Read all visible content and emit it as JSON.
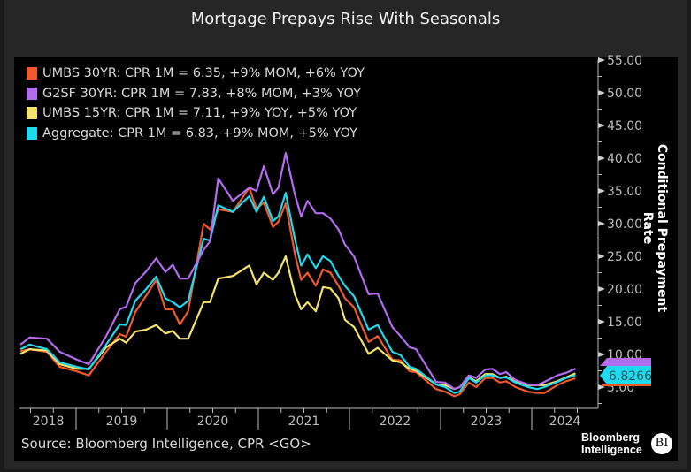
{
  "title": "Mortgage Prepays Rise With Seasonals",
  "source": "Source: Bloomberg Intelligence, CPR <GO>",
  "brand": {
    "line1": "Bloomberg",
    "line2": "Intelligence",
    "badge": "BI"
  },
  "chart_data": {
    "type": "line",
    "title": "Mortgage Prepays Rise With Seasonals",
    "xlabel": "",
    "ylabel": "Conditional Prepayment Rate",
    "ylim": [
      0,
      55
    ],
    "yticks": [
      "5.00",
      "10.00",
      "15.00",
      "20.00",
      "25.00",
      "30.00",
      "35.00",
      "40.00",
      "45.00",
      "50.00",
      "55.00"
    ],
    "xlim": [
      2018.39,
      2024.75
    ],
    "xticks": [
      "2018",
      "2019",
      "2020",
      "2021",
      "2022",
      "2023",
      "2024"
    ],
    "last_value_tag": "6.8266",
    "legend_position": "top-left",
    "x": [
      2018.39,
      2018.49,
      2018.68,
      2018.82,
      2019.01,
      2019.14,
      2019.33,
      2019.48,
      2019.55,
      2019.65,
      2019.77,
      2019.88,
      2019.98,
      2020.06,
      2020.14,
      2020.23,
      2020.4,
      2020.47,
      2020.56,
      2020.72,
      2020.9,
      2020.98,
      2021.06,
      2021.16,
      2021.22,
      2021.3,
      2021.4,
      2021.47,
      2021.54,
      2021.63,
      2021.71,
      2021.79,
      2021.88,
      2021.95,
      2022.05,
      2022.21,
      2022.31,
      2022.47,
      2022.56,
      2022.66,
      2022.73,
      2022.95,
      2023.05,
      2023.15,
      2023.21,
      2023.31,
      2023.39,
      2023.49,
      2023.57,
      2023.65,
      2023.72,
      2023.82,
      2023.96,
      2024.06,
      2024.14,
      2024.28,
      2024.38,
      2024.48
    ],
    "series": [
      {
        "name": "UMBS 30YR: CPR 1M = 6.35, +9% MOM, +6% YOY",
        "color": "#f0592b",
        "values": [
          10.5,
          10.8,
          10.4,
          8.1,
          7.4,
          6.8,
          10.4,
          13.1,
          12.7,
          16.5,
          19.0,
          21.4,
          16.9,
          16.9,
          14.6,
          16.6,
          30.0,
          29.1,
          32.2,
          31.8,
          35.5,
          32.3,
          33.2,
          29.5,
          30.3,
          33.1,
          25.4,
          21.4,
          22.5,
          20.5,
          23.0,
          22.5,
          20.5,
          18.6,
          17.2,
          11.9,
          12.8,
          9.2,
          9.1,
          7.4,
          7.3,
          4.7,
          4.3,
          3.6,
          3.9,
          5.7,
          5.0,
          6.4,
          6.4,
          5.7,
          5.9,
          5.0,
          4.3,
          4.1,
          4.1,
          5.3,
          5.9,
          6.35
        ]
      },
      {
        "name": "G2SF 30YR: CPR 1M = 7.83, +8% MOM, +3% YOY",
        "color": "#b36bf0",
        "values": [
          11.5,
          12.6,
          12.4,
          10.4,
          9.2,
          8.5,
          12.8,
          16.9,
          17.3,
          20.9,
          22.7,
          24.7,
          22.6,
          23.7,
          21.6,
          21.6,
          26.0,
          27.3,
          36.9,
          33.5,
          35.5,
          35.0,
          38.8,
          34.5,
          35.5,
          40.8,
          34.5,
          31.1,
          33.5,
          31.6,
          31.6,
          30.8,
          29.1,
          26.8,
          25.0,
          19.2,
          19.3,
          14.2,
          12.8,
          11.1,
          10.8,
          5.8,
          5.7,
          4.7,
          5.0,
          6.8,
          6.4,
          7.7,
          7.8,
          7.0,
          7.3,
          6.1,
          5.4,
          5.3,
          5.8,
          6.8,
          7.2,
          7.83
        ]
      },
      {
        "name": "UMBS 15YR: CPR 1M = 7.11, +9% YOY, +5% YOY",
        "color": "#f5e26a",
        "values": [
          10.1,
          10.8,
          10.6,
          8.5,
          7.8,
          7.8,
          11.1,
          12.4,
          11.8,
          13.5,
          13.8,
          14.5,
          13.2,
          13.6,
          12.4,
          12.4,
          18.0,
          18.0,
          21.6,
          22.0,
          23.6,
          20.7,
          22.5,
          21.4,
          22.5,
          25.0,
          19.2,
          16.9,
          18.0,
          16.6,
          20.3,
          20.1,
          18.6,
          15.3,
          14.2,
          10.1,
          11.0,
          9.1,
          8.8,
          7.8,
          7.5,
          5.4,
          5.3,
          4.7,
          5.0,
          6.5,
          5.9,
          7.0,
          7.0,
          6.4,
          6.6,
          5.9,
          5.3,
          5.3,
          5.3,
          5.9,
          6.5,
          7.11
        ]
      },
      {
        "name": "Aggregate: CPR 1M = 6.83, +9% MOM, +5% YOY",
        "color": "#1fd9ee",
        "values": [
          10.8,
          11.5,
          10.8,
          8.8,
          8.1,
          7.7,
          11.5,
          14.6,
          14.5,
          18.2,
          20.0,
          21.9,
          18.6,
          18.0,
          17.2,
          18.2,
          27.7,
          27.4,
          32.8,
          31.8,
          34.2,
          31.8,
          34.1,
          30.4,
          31.1,
          34.7,
          27.7,
          23.6,
          25.3,
          23.2,
          25.0,
          24.3,
          22.0,
          20.5,
          18.9,
          13.8,
          14.5,
          10.4,
          9.9,
          8.1,
          7.8,
          5.4,
          5.0,
          4.1,
          4.3,
          6.4,
          5.7,
          6.8,
          6.8,
          6.4,
          6.5,
          5.7,
          5.0,
          4.7,
          5.0,
          5.8,
          6.4,
          6.83
        ]
      }
    ]
  }
}
